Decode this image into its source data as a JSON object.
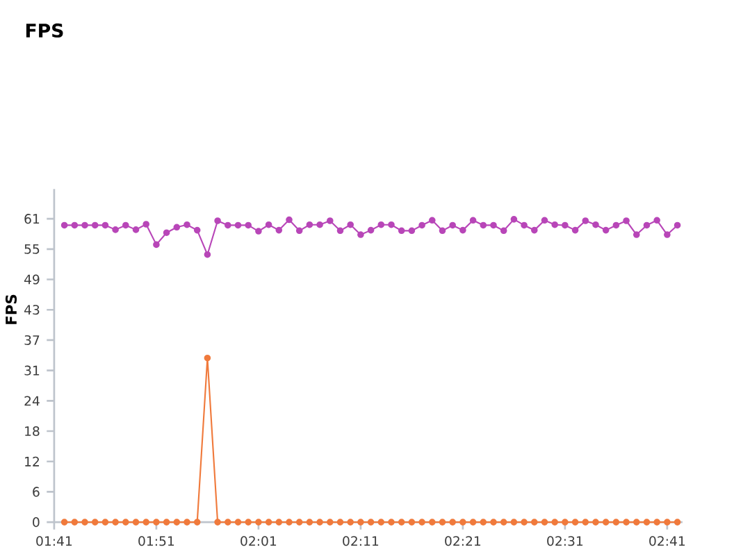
{
  "chart_data": {
    "type": "line",
    "title": "FPS",
    "ylabel": "FPS",
    "x": [
      102,
      103,
      104,
      105,
      106,
      107,
      108,
      109,
      110,
      111,
      112,
      113,
      114,
      115,
      116,
      117,
      118,
      119,
      120,
      121,
      122,
      123,
      124,
      125,
      126,
      127,
      128,
      129,
      130,
      131,
      132,
      133,
      134,
      135,
      136,
      137,
      138,
      139,
      140,
      141,
      142,
      143,
      144,
      145,
      146,
      147,
      148,
      149,
      150,
      151,
      152,
      153,
      154,
      155,
      156,
      157,
      158,
      159,
      160,
      161,
      162
    ],
    "series": [
      {
        "color": "#b846b8",
        "values": [
          59.7,
          59.7,
          59.7,
          59.7,
          59.7,
          58.8,
          59.7,
          58.8,
          59.9,
          55.8,
          58.2,
          59.3,
          59.8,
          58.7,
          53.8,
          60.6,
          59.7,
          59.7,
          59.7,
          58.5,
          59.8,
          58.7,
          60.8,
          58.6,
          59.8,
          59.8,
          60.6,
          58.6,
          59.8,
          57.8,
          58.7,
          59.8,
          59.8,
          58.6,
          58.6,
          59.7,
          60.7,
          58.6,
          59.7,
          58.7,
          60.7,
          59.7,
          59.7,
          58.6,
          60.9,
          59.7,
          58.7,
          60.7,
          59.8,
          59.7,
          58.7,
          60.6,
          59.8,
          58.7,
          59.7,
          60.6,
          57.8,
          59.7,
          60.7,
          57.8,
          59.7
        ]
      },
      {
        "color": "#f07a3c",
        "values": [
          0,
          0,
          0,
          0,
          0,
          0,
          0,
          0,
          0,
          0,
          0,
          0,
          0,
          0,
          33,
          0,
          0,
          0,
          0,
          0,
          0,
          0,
          0,
          0,
          0,
          0,
          0,
          0,
          0,
          0,
          0,
          0,
          0,
          0,
          0,
          0,
          0,
          0,
          0,
          0,
          0,
          0,
          0,
          0,
          0,
          0,
          0,
          0,
          0,
          0,
          0,
          0,
          0,
          0,
          0,
          0,
          0,
          0,
          0,
          0,
          0
        ]
      }
    ],
    "xlim": [
      101,
      162.5
    ],
    "ylim": [
      0,
      67
    ],
    "xticks": [
      {
        "value": 101,
        "label": "01:41"
      },
      {
        "value": 111,
        "label": "01:51"
      },
      {
        "value": 121,
        "label": "02:01"
      },
      {
        "value": 131,
        "label": "02:11"
      },
      {
        "value": 141,
        "label": "02:21"
      },
      {
        "value": 151,
        "label": "02:31"
      },
      {
        "value": 161,
        "label": "02:41"
      }
    ],
    "yticks": [
      0,
      {
        "value": 6.1,
        "label": "6"
      },
      {
        "value": 12.2,
        "label": "12"
      },
      {
        "value": 18.3,
        "label": "18"
      },
      {
        "value": 24.4,
        "label": "24"
      },
      {
        "value": 30.5,
        "label": "31"
      },
      {
        "value": 36.6,
        "label": "37"
      },
      {
        "value": 42.7,
        "label": "43"
      },
      {
        "value": 48.8,
        "label": "49"
      },
      {
        "value": 54.9,
        "label": "55"
      },
      61
    ],
    "grid": false,
    "marker": "circle",
    "line_style": "solid"
  }
}
